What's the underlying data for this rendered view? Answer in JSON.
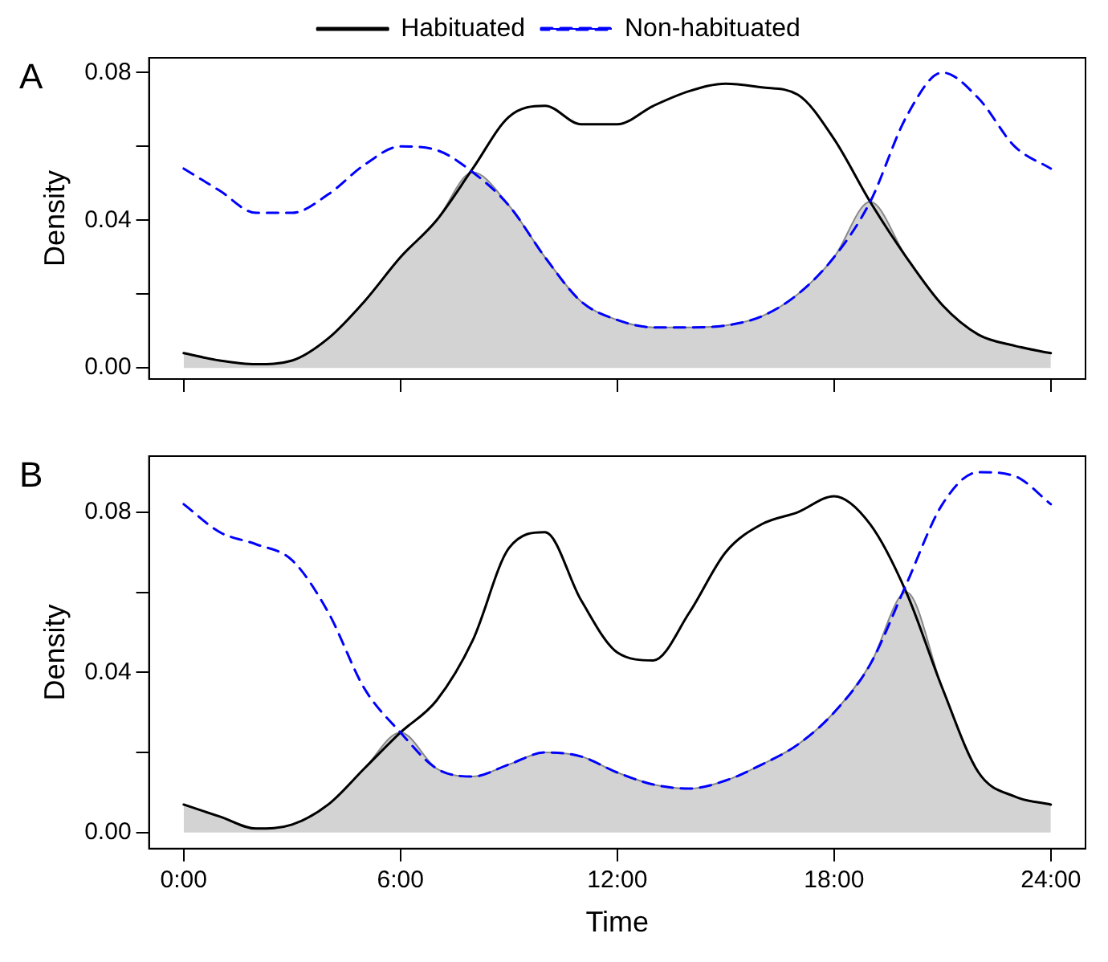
{
  "chart_data": [
    {
      "type": "line",
      "title": "A",
      "ylabel": "Density",
      "legend": "top",
      "tick_labels": "y",
      "grid": false,
      "marker": "none",
      "x": [
        0,
        1,
        2,
        3,
        4,
        5,
        6,
        7,
        8,
        9,
        10,
        11,
        12,
        13,
        14,
        15,
        16,
        17,
        18,
        19,
        20,
        21,
        22,
        23,
        24
      ],
      "xlim": [
        -0.96,
        24.96
      ],
      "xticks": [
        0,
        6,
        12,
        18,
        24
      ],
      "ylim": [
        -0.003,
        0.084
      ],
      "yticks": [
        {
          "value": 0,
          "label": "0.00"
        },
        {
          "value": 0.02,
          "label": null
        },
        {
          "value": 0.04,
          "label": "0.04"
        },
        {
          "value": 0.06,
          "label": null
        },
        {
          "value": 0.08,
          "label": "0.08"
        }
      ],
      "series": [
        {
          "type": "area",
          "color": "#d3d3d3",
          "values": [
            0.004,
            0.002,
            0.001,
            0.002,
            0.008,
            0.018,
            0.03,
            0.04,
            0.053,
            0.044,
            0.03,
            0.018,
            0.013,
            0.011,
            0.011,
            0.0115,
            0.014,
            0.02,
            0.03,
            0.045,
            0.03,
            0.017,
            0.009,
            0.006,
            0.004
          ]
        },
        {
          "name": "Habituated",
          "color": "#000000",
          "line_style": "solid",
          "values": [
            0.004,
            0.002,
            0.001,
            0.002,
            0.008,
            0.018,
            0.03,
            0.04,
            0.054,
            0.068,
            0.071,
            0.066,
            0.066,
            0.071,
            0.075,
            0.077,
            0.076,
            0.074,
            0.062,
            0.045,
            0.03,
            0.017,
            0.009,
            0.006,
            0.004
          ]
        },
        {
          "name": "Non-habituated",
          "color": "#0000ff",
          "line_style": "dashed",
          "values": [
            0.054,
            0.048,
            0.042,
            0.042,
            0.047,
            0.055,
            0.06,
            0.059,
            0.053,
            0.044,
            0.03,
            0.018,
            0.013,
            0.011,
            0.011,
            0.0115,
            0.014,
            0.02,
            0.03,
            0.045,
            0.068,
            0.08,
            0.073,
            0.06,
            0.054
          ]
        }
      ]
    },
    {
      "type": "line",
      "title": "B",
      "xlabel": "Time",
      "ylabel": "Density",
      "legend": false,
      "grid": false,
      "marker": "none",
      "x": [
        0,
        1,
        2,
        3,
        4,
        5,
        6,
        7,
        8,
        9,
        10,
        11,
        12,
        13,
        14,
        15,
        16,
        17,
        18,
        19,
        20,
        21,
        22,
        23,
        24
      ],
      "xlim": [
        -0.96,
        24.96
      ],
      "xticks": [
        {
          "value": 0,
          "label": "0:00"
        },
        {
          "value": 6,
          "label": "6:00"
        },
        {
          "value": 12,
          "label": "12:00"
        },
        {
          "value": 18,
          "label": "18:00"
        },
        {
          "value": 24,
          "label": "24:00"
        }
      ],
      "ylim": [
        -0.004,
        0.094
      ],
      "yticks": [
        {
          "value": 0,
          "label": "0.00"
        },
        {
          "value": 0.02,
          "label": null
        },
        {
          "value": 0.04,
          "label": "0.04"
        },
        {
          "value": 0.06,
          "label": null
        },
        {
          "value": 0.08,
          "label": "0.08"
        }
      ],
      "series": [
        {
          "type": "area",
          "color": "#d3d3d3",
          "values": [
            0.007,
            0.004,
            0.001,
            0.002,
            0.007,
            0.016,
            0.025,
            0.016,
            0.014,
            0.017,
            0.02,
            0.019,
            0.015,
            0.012,
            0.011,
            0.013,
            0.017,
            0.022,
            0.03,
            0.042,
            0.06,
            0.036,
            0.015,
            0.009,
            0.007
          ]
        },
        {
          "color": "#000000",
          "line_style": "solid",
          "values": [
            0.007,
            0.004,
            0.001,
            0.002,
            0.007,
            0.016,
            0.025,
            0.033,
            0.048,
            0.071,
            0.075,
            0.058,
            0.045,
            0.043,
            0.055,
            0.07,
            0.077,
            0.08,
            0.084,
            0.077,
            0.06,
            0.036,
            0.015,
            0.009,
            0.007
          ]
        },
        {
          "color": "#0000ff",
          "line_style": "dashed",
          "values": [
            0.082,
            0.075,
            0.072,
            0.068,
            0.055,
            0.036,
            0.025,
            0.016,
            0.014,
            0.017,
            0.02,
            0.019,
            0.015,
            0.012,
            0.011,
            0.013,
            0.017,
            0.022,
            0.03,
            0.042,
            0.062,
            0.082,
            0.09,
            0.089,
            0.082
          ]
        }
      ]
    }
  ]
}
